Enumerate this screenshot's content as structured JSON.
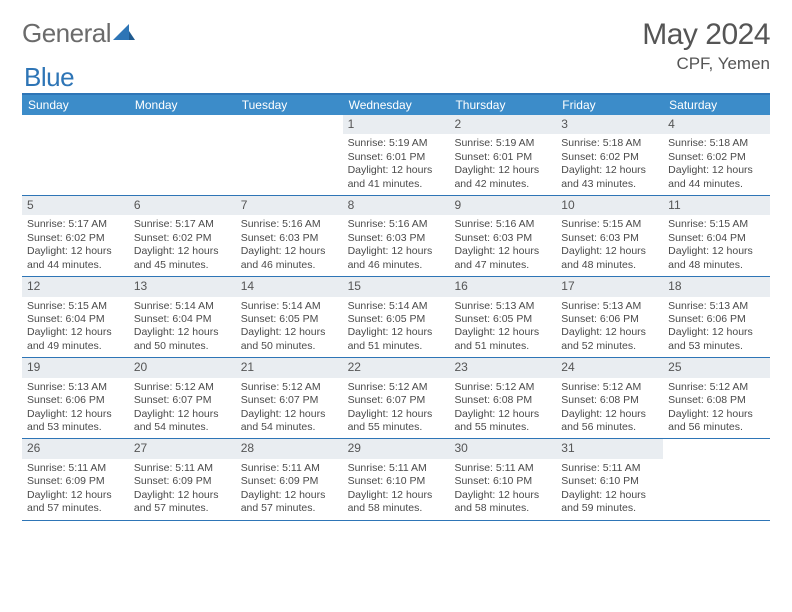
{
  "logo": {
    "part1": "General",
    "part2": "Blue"
  },
  "title": "May 2024",
  "location": "CPF, Yemen",
  "colors": {
    "header_bg": "#3c8cc9",
    "border": "#2e75b6",
    "daynum_bg": "#e9edf1",
    "text": "#555555",
    "logo_gray": "#6b6b6b",
    "logo_blue": "#2e75b6"
  },
  "day_names": [
    "Sunday",
    "Monday",
    "Tuesday",
    "Wednesday",
    "Thursday",
    "Friday",
    "Saturday"
  ],
  "weeks": [
    [
      {
        "empty": true
      },
      {
        "empty": true
      },
      {
        "empty": true
      },
      {
        "n": "1",
        "sr": "5:19 AM",
        "ss": "6:01 PM",
        "dl": "12 hours and 41 minutes."
      },
      {
        "n": "2",
        "sr": "5:19 AM",
        "ss": "6:01 PM",
        "dl": "12 hours and 42 minutes."
      },
      {
        "n": "3",
        "sr": "5:18 AM",
        "ss": "6:02 PM",
        "dl": "12 hours and 43 minutes."
      },
      {
        "n": "4",
        "sr": "5:18 AM",
        "ss": "6:02 PM",
        "dl": "12 hours and 44 minutes."
      }
    ],
    [
      {
        "n": "5",
        "sr": "5:17 AM",
        "ss": "6:02 PM",
        "dl": "12 hours and 44 minutes."
      },
      {
        "n": "6",
        "sr": "5:17 AM",
        "ss": "6:02 PM",
        "dl": "12 hours and 45 minutes."
      },
      {
        "n": "7",
        "sr": "5:16 AM",
        "ss": "6:03 PM",
        "dl": "12 hours and 46 minutes."
      },
      {
        "n": "8",
        "sr": "5:16 AM",
        "ss": "6:03 PM",
        "dl": "12 hours and 46 minutes."
      },
      {
        "n": "9",
        "sr": "5:16 AM",
        "ss": "6:03 PM",
        "dl": "12 hours and 47 minutes."
      },
      {
        "n": "10",
        "sr": "5:15 AM",
        "ss": "6:03 PM",
        "dl": "12 hours and 48 minutes."
      },
      {
        "n": "11",
        "sr": "5:15 AM",
        "ss": "6:04 PM",
        "dl": "12 hours and 48 minutes."
      }
    ],
    [
      {
        "n": "12",
        "sr": "5:15 AM",
        "ss": "6:04 PM",
        "dl": "12 hours and 49 minutes."
      },
      {
        "n": "13",
        "sr": "5:14 AM",
        "ss": "6:04 PM",
        "dl": "12 hours and 50 minutes."
      },
      {
        "n": "14",
        "sr": "5:14 AM",
        "ss": "6:05 PM",
        "dl": "12 hours and 50 minutes."
      },
      {
        "n": "15",
        "sr": "5:14 AM",
        "ss": "6:05 PM",
        "dl": "12 hours and 51 minutes."
      },
      {
        "n": "16",
        "sr": "5:13 AM",
        "ss": "6:05 PM",
        "dl": "12 hours and 51 minutes."
      },
      {
        "n": "17",
        "sr": "5:13 AM",
        "ss": "6:06 PM",
        "dl": "12 hours and 52 minutes."
      },
      {
        "n": "18",
        "sr": "5:13 AM",
        "ss": "6:06 PM",
        "dl": "12 hours and 53 minutes."
      }
    ],
    [
      {
        "n": "19",
        "sr": "5:13 AM",
        "ss": "6:06 PM",
        "dl": "12 hours and 53 minutes."
      },
      {
        "n": "20",
        "sr": "5:12 AM",
        "ss": "6:07 PM",
        "dl": "12 hours and 54 minutes."
      },
      {
        "n": "21",
        "sr": "5:12 AM",
        "ss": "6:07 PM",
        "dl": "12 hours and 54 minutes."
      },
      {
        "n": "22",
        "sr": "5:12 AM",
        "ss": "6:07 PM",
        "dl": "12 hours and 55 minutes."
      },
      {
        "n": "23",
        "sr": "5:12 AM",
        "ss": "6:08 PM",
        "dl": "12 hours and 55 minutes."
      },
      {
        "n": "24",
        "sr": "5:12 AM",
        "ss": "6:08 PM",
        "dl": "12 hours and 56 minutes."
      },
      {
        "n": "25",
        "sr": "5:12 AM",
        "ss": "6:08 PM",
        "dl": "12 hours and 56 minutes."
      }
    ],
    [
      {
        "n": "26",
        "sr": "5:11 AM",
        "ss": "6:09 PM",
        "dl": "12 hours and 57 minutes."
      },
      {
        "n": "27",
        "sr": "5:11 AM",
        "ss": "6:09 PM",
        "dl": "12 hours and 57 minutes."
      },
      {
        "n": "28",
        "sr": "5:11 AM",
        "ss": "6:09 PM",
        "dl": "12 hours and 57 minutes."
      },
      {
        "n": "29",
        "sr": "5:11 AM",
        "ss": "6:10 PM",
        "dl": "12 hours and 58 minutes."
      },
      {
        "n": "30",
        "sr": "5:11 AM",
        "ss": "6:10 PM",
        "dl": "12 hours and 58 minutes."
      },
      {
        "n": "31",
        "sr": "5:11 AM",
        "ss": "6:10 PM",
        "dl": "12 hours and 59 minutes."
      },
      {
        "empty": true
      }
    ]
  ],
  "labels": {
    "sunrise": "Sunrise: ",
    "sunset": "Sunset: ",
    "daylight": "Daylight: "
  }
}
